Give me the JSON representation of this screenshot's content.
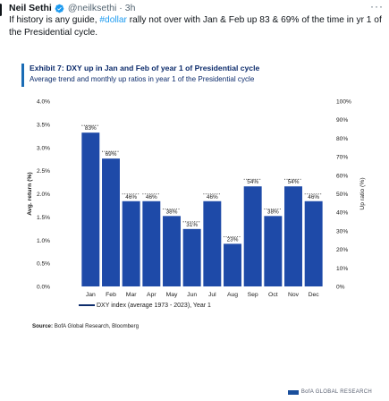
{
  "tweet": {
    "author_name": "Neil Sethi",
    "author_handle": "@neilksethi",
    "dot": "·",
    "time": "3h",
    "more_icon": "more-icon",
    "verified_icon": "verified-badge-icon",
    "text_before": "If history is any guide, ",
    "hashtag": "#dollar",
    "text_after": " rally not over with Jan & Feb up 83 & 69% of the time in yr 1 of the Presidential cycle."
  },
  "exhibit": {
    "title": "Exhibit 7: DXY up in Jan and Feb of year 1 of Presidential cycle",
    "subtitle": "Average trend and monthly up ratios in year 1 of the Presidential cycle",
    "legend": "DXY index (average 1973 - 2023), Year 1",
    "source_label": "Source:",
    "source_text": " BofA Global Research, Bloomberg",
    "brand": "BofA GLOBAL RESEARCH"
  },
  "chart_data": {
    "type": "bar",
    "categories": [
      "Jan",
      "Feb",
      "Mar",
      "Apr",
      "May",
      "Jun",
      "Jul",
      "Aug",
      "Sep",
      "Oct",
      "Nov",
      "Dec"
    ],
    "series": [
      {
        "name": "Up ratio (%)",
        "axis": "right",
        "values": [
          83,
          69,
          46,
          46,
          38,
          31,
          46,
          23,
          54,
          38,
          54,
          46
        ]
      }
    ],
    "line_series": {
      "name": "DXY index (average 1973 - 2023), Year 1",
      "axis": "left"
    },
    "bar_labels": [
      "83%",
      "69%",
      "46%",
      "46%",
      "38%",
      "31%",
      "46%",
      "23%",
      "54%",
      "38%",
      "54%",
      "46%"
    ],
    "ylabel_left": "Avg. return (%)",
    "ylabel_right": "Up ratio (%)",
    "yticks_left": [
      "0.0%",
      "0.5%",
      "1.0%",
      "1.5%",
      "2.0%",
      "2.5%",
      "3.0%",
      "3.5%",
      "4.0%"
    ],
    "yticks_right": [
      "0%",
      "10%",
      "20%",
      "30%",
      "40%",
      "50%",
      "60%",
      "70%",
      "80%",
      "90%",
      "100%"
    ],
    "ylim_left": [
      0,
      4
    ],
    "ylim_right": [
      0,
      100
    ],
    "colors": {
      "bar": "#1e4aa8",
      "line": "#0d2c6c",
      "dotted": "#1a1a1a"
    }
  }
}
